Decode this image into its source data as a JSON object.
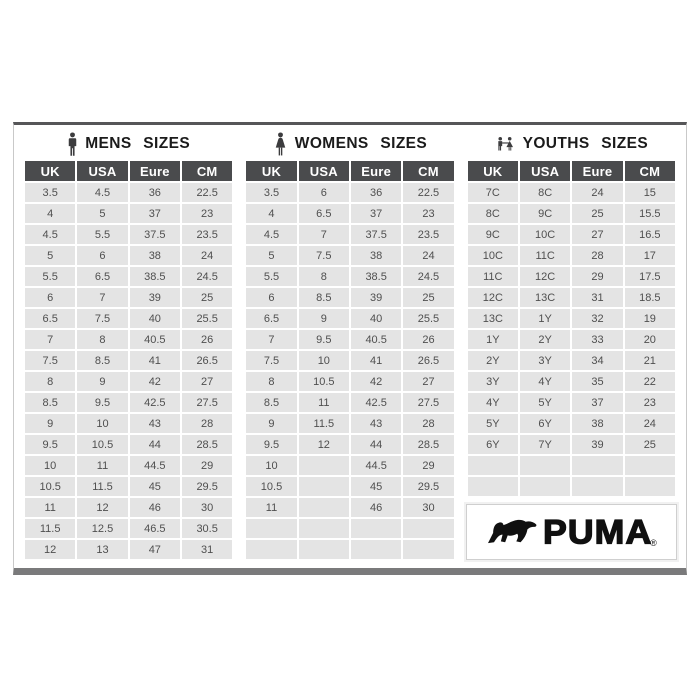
{
  "colors": {
    "header_bg": "#4a4b4d",
    "cell_bg": "#e4e4e4",
    "cell_text": "#4f4f4f",
    "title_text": "#1b1b1b",
    "frame_top_border": "#565658",
    "frame_bottom_bar": "#7a7a7b",
    "icon_color": "#3c3c3e"
  },
  "chart_data": {
    "type": "table",
    "tables": [
      {
        "title": "MENS  SIZES",
        "icon": "man-icon",
        "columns": [
          "UK",
          "USA",
          "Eure",
          "CM"
        ],
        "rows": [
          [
            "3.5",
            "4.5",
            "36",
            "22.5"
          ],
          [
            "4",
            "5",
            "37",
            "23"
          ],
          [
            "4.5",
            "5.5",
            "37.5",
            "23.5"
          ],
          [
            "5",
            "6",
            "38",
            "24"
          ],
          [
            "5.5",
            "6.5",
            "38.5",
            "24.5"
          ],
          [
            "6",
            "7",
            "39",
            "25"
          ],
          [
            "6.5",
            "7.5",
            "40",
            "25.5"
          ],
          [
            "7",
            "8",
            "40.5",
            "26"
          ],
          [
            "7.5",
            "8.5",
            "41",
            "26.5"
          ],
          [
            "8",
            "9",
            "42",
            "27"
          ],
          [
            "8.5",
            "9.5",
            "42.5",
            "27.5"
          ],
          [
            "9",
            "10",
            "43",
            "28"
          ],
          [
            "9.5",
            "10.5",
            "44",
            "28.5"
          ],
          [
            "10",
            "11",
            "44.5",
            "29"
          ],
          [
            "10.5",
            "11.5",
            "45",
            "29.5"
          ],
          [
            "11",
            "12",
            "46",
            "30"
          ],
          [
            "11.5",
            "12.5",
            "46.5",
            "30.5"
          ],
          [
            "12",
            "13",
            "47",
            "31"
          ]
        ]
      },
      {
        "title": "WOMENS  SIZES",
        "icon": "woman-icon",
        "columns": [
          "UK",
          "USA",
          "Eure",
          "CM"
        ],
        "rows": [
          [
            "3.5",
            "6",
            "36",
            "22.5"
          ],
          [
            "4",
            "6.5",
            "37",
            "23"
          ],
          [
            "4.5",
            "7",
            "37.5",
            "23.5"
          ],
          [
            "5",
            "7.5",
            "38",
            "24"
          ],
          [
            "5.5",
            "8",
            "38.5",
            "24.5"
          ],
          [
            "6",
            "8.5",
            "39",
            "25"
          ],
          [
            "6.5",
            "9",
            "40",
            "25.5"
          ],
          [
            "7",
            "9.5",
            "40.5",
            "26"
          ],
          [
            "7.5",
            "10",
            "41",
            "26.5"
          ],
          [
            "8",
            "10.5",
            "42",
            "27"
          ],
          [
            "8.5",
            "11",
            "42.5",
            "27.5"
          ],
          [
            "9",
            "11.5",
            "43",
            "28"
          ],
          [
            "9.5",
            "12",
            "44",
            "28.5"
          ],
          [
            "10",
            "",
            "44.5",
            "29"
          ],
          [
            "10.5",
            "",
            "45",
            "29.5"
          ],
          [
            "11",
            "",
            "46",
            "30"
          ],
          [
            "",
            "",
            "",
            ""
          ],
          [
            "",
            "",
            "",
            ""
          ]
        ]
      },
      {
        "title": "YOUTHS  SIZES",
        "icon": "children-icon",
        "columns": [
          "UK",
          "USA",
          "Eure",
          "CM"
        ],
        "rows": [
          [
            "7C",
            "8C",
            "24",
            "15"
          ],
          [
            "8C",
            "9C",
            "25",
            "15.5"
          ],
          [
            "9C",
            "10C",
            "27",
            "16.5"
          ],
          [
            "10C",
            "11C",
            "28",
            "17"
          ],
          [
            "11C",
            "12C",
            "29",
            "17.5"
          ],
          [
            "12C",
            "13C",
            "31",
            "18.5"
          ],
          [
            "13C",
            "1Y",
            "32",
            "19"
          ],
          [
            "1Y",
            "2Y",
            "33",
            "20"
          ],
          [
            "2Y",
            "3Y",
            "34",
            "21"
          ],
          [
            "3Y",
            "4Y",
            "35",
            "22"
          ],
          [
            "4Y",
            "5Y",
            "37",
            "23"
          ],
          [
            "5Y",
            "6Y",
            "38",
            "24"
          ],
          [
            "6Y",
            "7Y",
            "39",
            "25"
          ],
          [
            "",
            "",
            "",
            ""
          ],
          [
            "",
            "",
            "",
            ""
          ]
        ]
      }
    ]
  },
  "logo": {
    "brand": "PUMA",
    "registered": "®"
  }
}
